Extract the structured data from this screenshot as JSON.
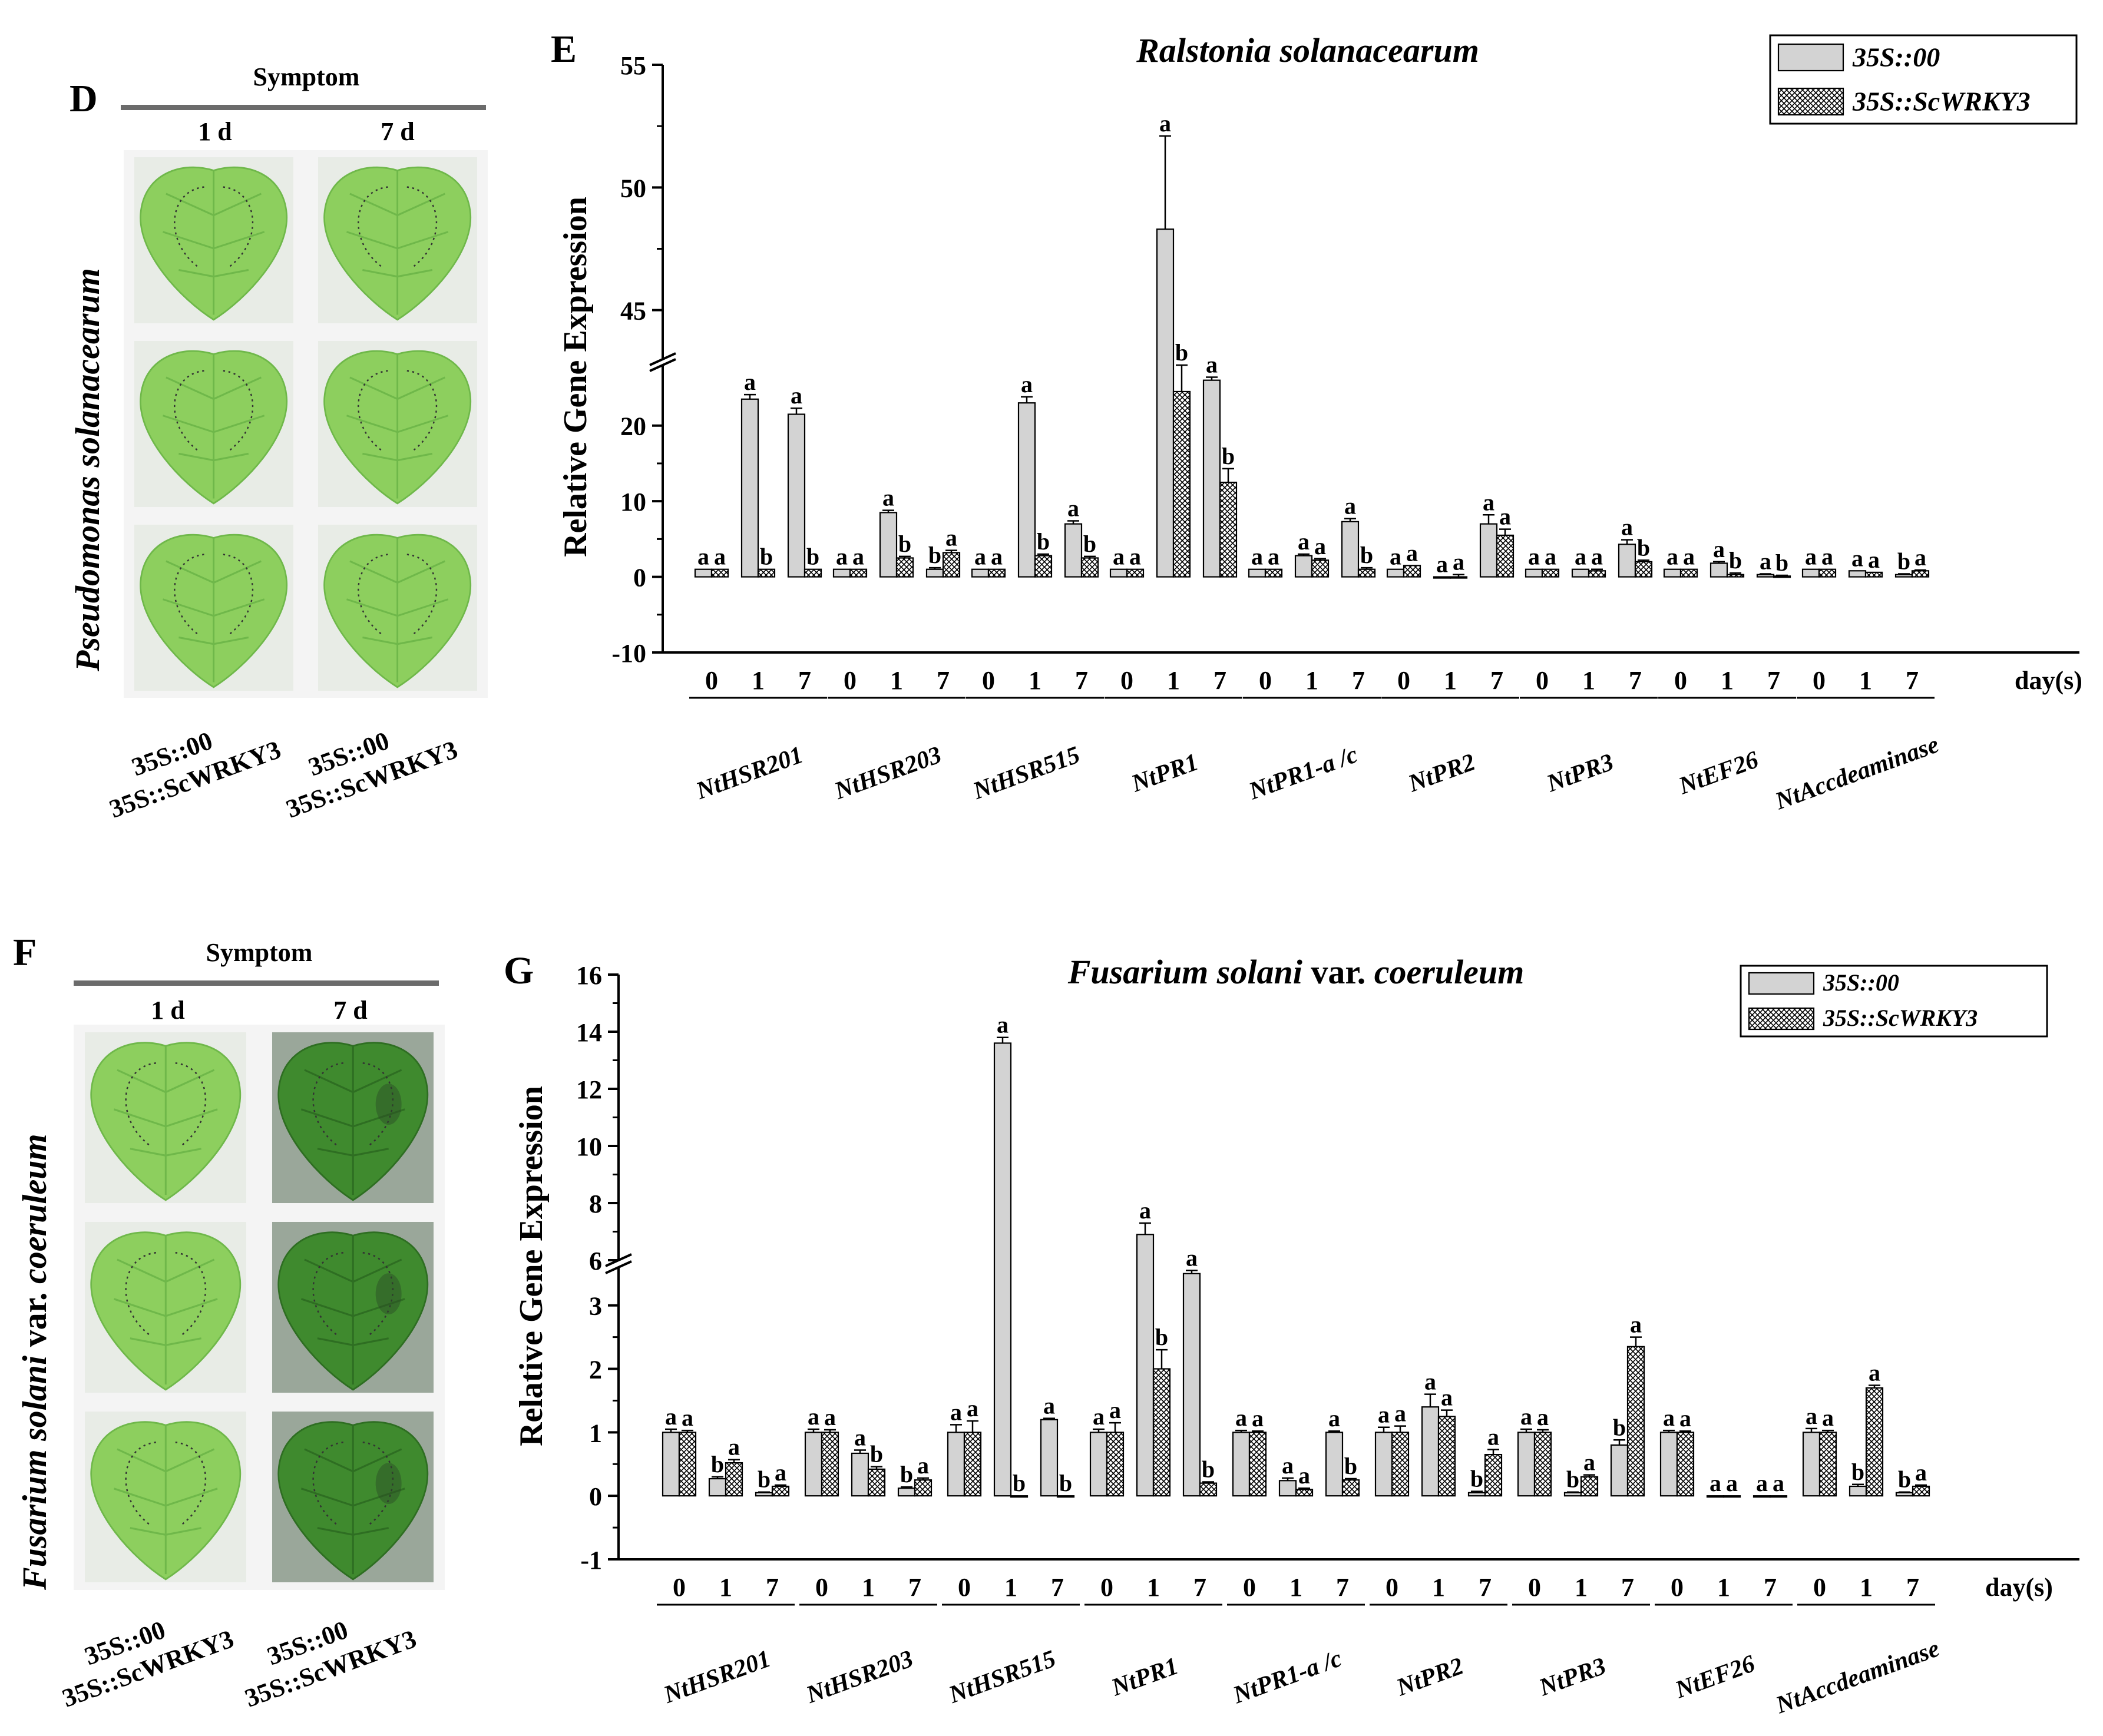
{
  "panels": {
    "D": {
      "letter": "D",
      "symptom_title": "Symptom",
      "days": [
        "1 d",
        "7 d"
      ],
      "side_title": "Pseudomonas solanacearum",
      "genotype_labels": [
        {
          "line1": "35S::00",
          "line2": "35S::ScWRKY3"
        },
        {
          "line1": "35S::00",
          "line2": "35S::ScWRKY3"
        }
      ]
    },
    "F": {
      "letter": "F",
      "symptom_title": "Symptom",
      "days": [
        "1 d",
        "7 d"
      ],
      "side_title_italic_1": "Fusarium solani",
      "side_title_plain": " var. ",
      "side_title_italic_2": "coeruleum",
      "genotype_labels": [
        {
          "line1": "35S::00",
          "line2": "35S::ScWRKY3"
        },
        {
          "line1": "35S::00",
          "line2": "35S::ScWRKY3"
        }
      ]
    }
  },
  "colors": {
    "bar_fill": "#d3d3d3",
    "hatch": "#000000",
    "leaf_light": "#8fcf62",
    "leaf_dark": "#4f9a35",
    "background": "#ffffff"
  },
  "chart_data": [
    {
      "id": "E",
      "type": "bar",
      "panel_letter": "E",
      "title": "Ralstonia solanacearum",
      "title_parts": [
        {
          "text": "Ralstonia solanacearum",
          "italic": true
        }
      ],
      "ylabel": "Relative Gene Expression",
      "xlabel": "day(s)",
      "ylim_lower": [
        -10,
        28
      ],
      "ylim_upper": [
        43,
        55
      ],
      "yticks_lower": [
        -10,
        0,
        10,
        20
      ],
      "yticks_upper": [
        45,
        50,
        55
      ],
      "ticklabels": [
        "-10",
        "0",
        "10",
        "20",
        "45",
        "50",
        "55"
      ],
      "legend": [
        "35S::00",
        "35S::ScWRKY3"
      ],
      "legend_position": "top-right",
      "day_labels": [
        "0",
        "1",
        "7"
      ],
      "genes": [
        "NtHSR201",
        "NtHSR203",
        "NtHSR515",
        "NtPR1",
        "NtPR1-a /c",
        "NtPR2",
        "NtPR3",
        "NtEF26",
        "NtAccdeaminase"
      ],
      "series": [
        {
          "name": "35S::00",
          "values": [
            [
              1,
              23.5,
              21.5
            ],
            [
              1,
              8.5,
              1
            ],
            [
              1,
              23,
              7
            ],
            [
              1,
              48.3,
              26
            ],
            [
              1,
              2.8,
              7.3
            ],
            [
              1,
              0,
              7
            ],
            [
              1,
              1,
              4.3
            ],
            [
              1,
              1.8,
              0.3
            ],
            [
              1,
              0.8,
              0.3
            ]
          ],
          "errors": [
            [
              0,
              0.6,
              0.8
            ],
            [
              0,
              0.3,
              0.2
            ],
            [
              0,
              0.8,
              0.4
            ],
            [
              0,
              3.8,
              0.4
            ],
            [
              0,
              0.2,
              0.4
            ],
            [
              0,
              0,
              1.2
            ],
            [
              0,
              0,
              0.6
            ],
            [
              0,
              0.2,
              0.1
            ],
            [
              0,
              0,
              0.1
            ]
          ],
          "letters": [
            [
              "a",
              "a",
              "a"
            ],
            [
              "a",
              "a",
              "b"
            ],
            [
              "a",
              "a",
              "a"
            ],
            [
              "a",
              "a",
              "a"
            ],
            [
              "a",
              "a",
              "a"
            ],
            [
              "a",
              "a",
              "a"
            ],
            [
              "a",
              "a",
              "a"
            ],
            [
              "a",
              "a",
              "a"
            ],
            [
              "a",
              "a",
              "b"
            ]
          ]
        },
        {
          "name": "35S::ScWRKY3",
          "values": [
            [
              1,
              1,
              1
            ],
            [
              1,
              2.5,
              3.2
            ],
            [
              1,
              2.8,
              2.5
            ],
            [
              1,
              24.5,
              12.5
            ],
            [
              1,
              2.2,
              1
            ],
            [
              1.5,
              0,
              5.5
            ],
            [
              1,
              0.8,
              2
            ],
            [
              1,
              0.3,
              0.1
            ],
            [
              1,
              0.6,
              0.8
            ]
          ],
          "errors": [
            [
              0,
              0,
              0
            ],
            [
              0,
              0.2,
              0.3
            ],
            [
              0,
              0.2,
              0.2
            ],
            [
              0,
              3.5,
              1.8
            ],
            [
              0,
              0.2,
              0.2
            ],
            [
              0,
              0.3,
              0.8
            ],
            [
              0,
              0.2,
              0.2
            ],
            [
              0,
              0.2,
              0.1
            ],
            [
              0,
              0,
              0.1
            ]
          ],
          "letters": [
            [
              "a",
              "b",
              "b"
            ],
            [
              "a",
              "b",
              "a"
            ],
            [
              "a",
              "b",
              "b"
            ],
            [
              "a",
              "b",
              "b"
            ],
            [
              "a",
              "a",
              "b"
            ],
            [
              "a",
              "a",
              "a"
            ],
            [
              "a",
              "a",
              "b"
            ],
            [
              "a",
              "b",
              "b"
            ],
            [
              "a",
              "a",
              "a"
            ]
          ]
        }
      ]
    },
    {
      "id": "G",
      "type": "bar",
      "panel_letter": "G",
      "title": "Fusarium solani var. coeruleum",
      "title_parts": [
        {
          "text": "Fusarium solani",
          "italic": true
        },
        {
          "text": " var. ",
          "italic": false
        },
        {
          "text": "coeruleum",
          "italic": true
        }
      ],
      "ylabel": "Relative Gene Expression",
      "xlabel": "day(s)",
      "ylim_lower": [
        -1,
        3.6
      ],
      "ylim_upper": [
        6,
        16
      ],
      "yticks_lower": [
        -1,
        0,
        1,
        2,
        3
      ],
      "yticks_upper": [
        6,
        8,
        10,
        12,
        14,
        16
      ],
      "ticklabels": [
        "-1",
        "0",
        "1",
        "2",
        "3",
        "6",
        "8",
        "10",
        "12",
        "14",
        "16"
      ],
      "legend": [
        "35S::00",
        "35S::ScWRKY3"
      ],
      "legend_position": "top-right",
      "day_labels": [
        "0",
        "1",
        "7"
      ],
      "genes": [
        "NtHSR201",
        "NtHSR203",
        "NtHSR515",
        "NtPR1",
        "NtPR1-a /c",
        "NtPR2",
        "NtPR3",
        "NtEF26",
        "NtAccdeaminase"
      ],
      "series": [
        {
          "name": "35S::00",
          "values": [
            [
              1,
              0.27,
              0.05
            ],
            [
              1,
              0.67,
              0.12
            ],
            [
              1,
              13.6,
              1.2
            ],
            [
              1,
              6.9,
              3.5
            ],
            [
              1,
              0.24,
              1
            ],
            [
              1,
              1.4,
              0.05
            ],
            [
              1,
              0.05,
              0.8
            ],
            [
              1,
              0,
              0
            ],
            [
              1,
              0.15,
              0.05
            ]
          ],
          "errors": [
            [
              0.05,
              0.03,
              0.01
            ],
            [
              0.05,
              0.05,
              0.02
            ],
            [
              0.12,
              0.2,
              0.02
            ],
            [
              0.05,
              0.4,
              0.05
            ],
            [
              0.03,
              0.04,
              0.02
            ],
            [
              0.08,
              0.2,
              0.02
            ],
            [
              0.05,
              0.01,
              0.08
            ],
            [
              0.03,
              0,
              0
            ],
            [
              0.06,
              0.03,
              0.01
            ]
          ],
          "letters": [
            [
              "a",
              "b",
              "b"
            ],
            [
              "a",
              "a",
              "b"
            ],
            [
              "a",
              "a",
              "a"
            ],
            [
              "a",
              "a",
              "a"
            ],
            [
              "a",
              "a",
              "a"
            ],
            [
              "a",
              "a",
              "b"
            ],
            [
              "a",
              "b",
              "b"
            ],
            [
              "a",
              "a",
              "a"
            ],
            [
              "a",
              "b",
              "b"
            ]
          ]
        },
        {
          "name": "35S::ScWRKY3",
          "values": [
            [
              1,
              0.52,
              0.15
            ],
            [
              1,
              0.42,
              0.25
            ],
            [
              1,
              0,
              0
            ],
            [
              1,
              2,
              0.2
            ],
            [
              1,
              0.1,
              0.25
            ],
            [
              1,
              1.25,
              0.65
            ],
            [
              1,
              0.3,
              2.35
            ],
            [
              1,
              0,
              0
            ],
            [
              1,
              1.7,
              0.15
            ]
          ],
          "errors": [
            [
              0.03,
              0.05,
              0.02
            ],
            [
              0.04,
              0.04,
              0.03
            ],
            [
              0.18,
              0,
              0
            ],
            [
              0.15,
              0.3,
              0.02
            ],
            [
              0.02,
              0.02,
              0.02
            ],
            [
              0.1,
              0.1,
              0.08
            ],
            [
              0.04,
              0.03,
              0.15
            ],
            [
              0.02,
              0,
              0
            ],
            [
              0.03,
              0.04,
              0.02
            ]
          ],
          "letters": [
            [
              "a",
              "a",
              "a"
            ],
            [
              "a",
              "b",
              "a"
            ],
            [
              "a",
              "b",
              "b"
            ],
            [
              "a",
              "b",
              "b"
            ],
            [
              "a",
              "a",
              "b"
            ],
            [
              "a",
              "a",
              "a"
            ],
            [
              "a",
              "a",
              "a"
            ],
            [
              "a",
              "a",
              "a"
            ],
            [
              "a",
              "a",
              "a"
            ]
          ]
        }
      ]
    }
  ]
}
